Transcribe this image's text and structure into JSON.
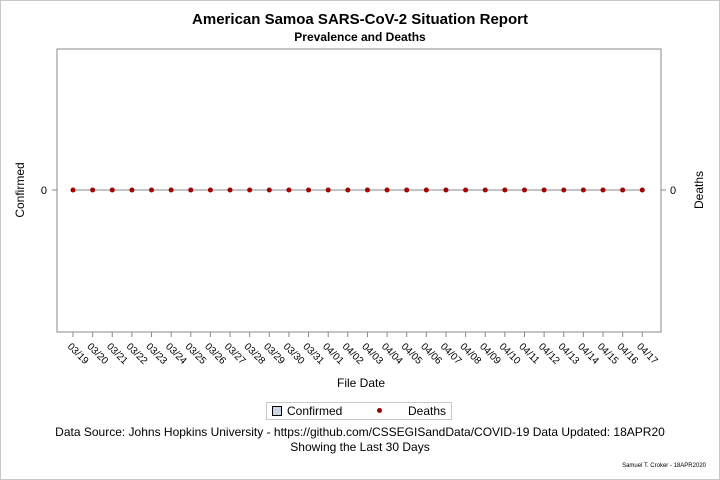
{
  "chart_data": {
    "type": "line",
    "title": "American Samoa SARS-CoV-2 Situation Report",
    "subtitle": "Prevalence and Deaths",
    "xlabel": "File Date",
    "ylabel_left": "Confirmed",
    "ylabel_right": "Deaths",
    "x": [
      "03/19",
      "03/20",
      "03/21",
      "03/22",
      "03/23",
      "03/24",
      "03/25",
      "03/26",
      "03/27",
      "03/28",
      "03/29",
      "03/30",
      "03/31",
      "04/01",
      "04/02",
      "04/03",
      "04/04",
      "04/05",
      "04/06",
      "04/07",
      "04/08",
      "04/09",
      "04/10",
      "04/11",
      "04/12",
      "04/13",
      "04/14",
      "04/15",
      "04/16",
      "04/17"
    ],
    "series": [
      {
        "name": "Confirmed",
        "values": [
          0,
          0,
          0,
          0,
          0,
          0,
          0,
          0,
          0,
          0,
          0,
          0,
          0,
          0,
          0,
          0,
          0,
          0,
          0,
          0,
          0,
          0,
          0,
          0,
          0,
          0,
          0,
          0,
          0,
          0
        ]
      },
      {
        "name": "Deaths",
        "values": [
          0,
          0,
          0,
          0,
          0,
          0,
          0,
          0,
          0,
          0,
          0,
          0,
          0,
          0,
          0,
          0,
          0,
          0,
          0,
          0,
          0,
          0,
          0,
          0,
          0,
          0,
          0,
          0,
          0,
          0
        ]
      }
    ],
    "y_ticks_left": [
      "0"
    ],
    "y_ticks_right": [
      "0"
    ],
    "legend_placement": "bottom",
    "colors": {
      "confirmed": "#cad5e5",
      "deaths": "#a00000",
      "axis": "#888888"
    }
  },
  "footer": {
    "source": "Data Source: Johns Hopkins University - https://github.com/CSSEGISandData/COVID-19 Data Updated: 18APR20",
    "window": "Showing the Last 30 Days",
    "credit": "Samuel T. Croker - 18APR2020"
  }
}
